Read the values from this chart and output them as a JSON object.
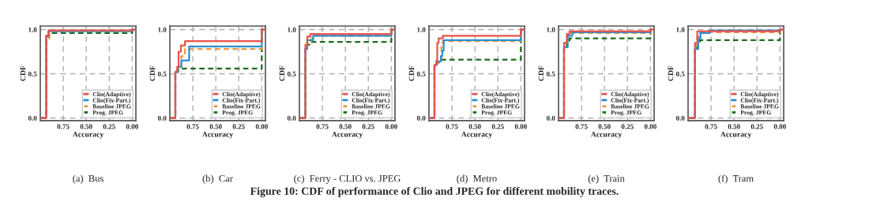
{
  "chart_data": [
    {
      "type": "step",
      "title": "(a)  Bus",
      "xlabel": "Accuracy",
      "ylabel": "CDF",
      "xlim": [
        1.0,
        -0.04
      ],
      "ylim": [
        -0.03,
        1.04
      ],
      "xticks": [
        {
          "value": 0.75,
          "label": "0.75"
        },
        {
          "value": 0.5,
          "label": "0.50"
        },
        {
          "value": 0.25,
          "label": "0.25"
        },
        {
          "value": 0,
          "label": "0.00"
        }
      ],
      "yticks": [
        {
          "value": 0,
          "label": "0.0"
        },
        {
          "value": 0.5,
          "label": "0.5"
        },
        {
          "value": 1,
          "label": "1.0"
        }
      ],
      "grid": true,
      "legend": "bottom right",
      "annotations": [
        "Figure 10: CDF of performance of Clio and JPEG for different mobility traces."
      ],
      "series": [
        {
          "name": "Clio(Adaptive)",
          "color": "#e8534a",
          "line_style": "solid",
          "x": [
            1.0,
            0.935,
            0.91,
            0.0,
            -0.04
          ],
          "values": [
            0,
            0.93,
            0.99,
            1.0,
            1.0
          ]
        },
        {
          "name": "Clio(Fix-Part.)",
          "color": "#2a8fd0",
          "line_style": "solid",
          "x": [
            1.0,
            0.935,
            0.91,
            0.0,
            -0.04
          ],
          "values": [
            0,
            0.92,
            0.98,
            1.0,
            1.0
          ]
        },
        {
          "name": "Baseline JPEG",
          "color": "#f0943d",
          "line_style": "dashed",
          "x": [
            1.0,
            0.935,
            0.9,
            0.0,
            -0.04
          ],
          "values": [
            0,
            0.9,
            0.99,
            1.0,
            1.0
          ]
        },
        {
          "name": "Prog. JPEG",
          "color": "#1e6b1e",
          "line_style": "dashed",
          "x": [
            1.0,
            0.935,
            0.91,
            0.0,
            -0.04
          ],
          "values": [
            0,
            0.93,
            0.96,
            1.0,
            1.0
          ]
        }
      ]
    },
    {
      "type": "step",
      "title": "(b)  Car",
      "xlabel": "Accuracy",
      "ylabel": "CDF",
      "xlim": [
        1.0,
        -0.04
      ],
      "ylim": [
        -0.03,
        1.04
      ],
      "xticks": [
        {
          "value": 0.75,
          "label": "0.75"
        },
        {
          "value": 0.5,
          "label": "0.50"
        },
        {
          "value": 0.25,
          "label": "0.25"
        },
        {
          "value": 0,
          "label": "0.00"
        }
      ],
      "yticks": [
        {
          "value": 0,
          "label": "0.0"
        },
        {
          "value": 0.5,
          "label": "0.5"
        },
        {
          "value": 1,
          "label": "1.0"
        }
      ],
      "grid": true,
      "legend": "bottom right",
      "series": [
        {
          "name": "Clio(Adaptive)",
          "color": "#e8534a",
          "line_style": "solid",
          "x": [
            1.0,
            0.94,
            0.92,
            0.905,
            0.88,
            0.835,
            0.0,
            -0.04
          ],
          "values": [
            0,
            0.52,
            0.58,
            0.75,
            0.82,
            0.87,
            1.0,
            1.0
          ]
        },
        {
          "name": "Clio(Fix-Part.)",
          "color": "#2a8fd0",
          "line_style": "solid",
          "x": [
            1.0,
            0.94,
            0.91,
            0.875,
            0.79,
            0.0,
            -0.04
          ],
          "values": [
            0,
            0.52,
            0.58,
            0.65,
            0.81,
            1.0,
            1.0
          ]
        },
        {
          "name": "Baseline JPEG",
          "color": "#f0943d",
          "line_style": "dashed",
          "x": [
            1.0,
            0.94,
            0.905,
            0.875,
            0.835,
            0.0,
            -0.04
          ],
          "values": [
            0,
            0.53,
            0.58,
            0.7,
            0.78,
            1.0,
            1.0
          ]
        },
        {
          "name": "Prog. JPEG",
          "color": "#1e6b1e",
          "line_style": "dashed",
          "x": [
            1.0,
            0.94,
            0.92,
            0.89,
            0.0,
            -0.04
          ],
          "values": [
            0,
            0.52,
            0.55,
            0.56,
            1.0,
            1.0
          ]
        }
      ]
    },
    {
      "type": "step",
      "title": "(c)  Ferry - CLIO vs. JPEG",
      "xlabel": "Accuracy",
      "ylabel": "CDF",
      "xlim": [
        1.0,
        -0.04
      ],
      "ylim": [
        -0.03,
        1.04
      ],
      "xticks": [
        {
          "value": 0.75,
          "label": "0.75"
        },
        {
          "value": 0.5,
          "label": "0.50"
        },
        {
          "value": 0.25,
          "label": "0.25"
        },
        {
          "value": 0,
          "label": "0.00"
        }
      ],
      "yticks": [
        {
          "value": 0,
          "label": "0.0"
        },
        {
          "value": 0.5,
          "label": "0.5"
        },
        {
          "value": 1,
          "label": "1.0"
        }
      ],
      "grid": true,
      "legend": "bottom right",
      "series": [
        {
          "name": "Clio(Adaptive)",
          "color": "#e8534a",
          "line_style": "solid",
          "x": [
            1.0,
            0.935,
            0.915,
            0.88,
            0.0,
            -0.04
          ],
          "values": [
            0,
            0.82,
            0.92,
            0.95,
            1.0,
            1.0
          ]
        },
        {
          "name": "Clio(Fix-Part.)",
          "color": "#2a8fd0",
          "line_style": "solid",
          "x": [
            1.0,
            0.935,
            0.915,
            0.85,
            0.0,
            -0.04
          ],
          "values": [
            0,
            0.78,
            0.88,
            0.93,
            1.0,
            1.0
          ]
        },
        {
          "name": "Baseline JPEG",
          "color": "#f0943d",
          "line_style": "dashed",
          "x": [
            1.0,
            0.935,
            0.91,
            0.865,
            0.0,
            -0.04
          ],
          "values": [
            0,
            0.83,
            0.87,
            0.93,
            1.0,
            1.0
          ]
        },
        {
          "name": "Prog. JPEG",
          "color": "#1e6b1e",
          "line_style": "dashed",
          "x": [
            1.0,
            0.935,
            0.915,
            0.88,
            0.0,
            -0.04
          ],
          "values": [
            0,
            0.8,
            0.83,
            0.86,
            1.0,
            1.0
          ]
        }
      ]
    },
    {
      "type": "step",
      "title": "(d)  Metro",
      "xlabel": "Accuracy",
      "ylabel": "CDF",
      "xlim": [
        1.0,
        -0.04
      ],
      "ylim": [
        -0.03,
        1.04
      ],
      "xticks": [
        {
          "value": 0.75,
          "label": "0.75"
        },
        {
          "value": 0.5,
          "label": "0.50"
        },
        {
          "value": 0.25,
          "label": "0.25"
        },
        {
          "value": 0,
          "label": "0.00"
        }
      ],
      "yticks": [
        {
          "value": 0,
          "label": "0.0"
        },
        {
          "value": 0.5,
          "label": "0.5"
        },
        {
          "value": 1,
          "label": "1.0"
        }
      ],
      "grid": true,
      "legend": "bottom right",
      "series": [
        {
          "name": "Clio(Adaptive)",
          "color": "#e8534a",
          "line_style": "solid",
          "x": [
            1.0,
            0.94,
            0.92,
            0.91,
            0.895,
            0.85,
            0.0,
            -0.04
          ],
          "values": [
            0,
            0.6,
            0.65,
            0.85,
            0.9,
            0.93,
            1.0,
            1.0
          ]
        },
        {
          "name": "Clio(Fix-Part.)",
          "color": "#2a8fd0",
          "line_style": "solid",
          "x": [
            1.0,
            0.94,
            0.915,
            0.87,
            0.855,
            0.84,
            0.0,
            -0.04
          ],
          "values": [
            0,
            0.6,
            0.64,
            0.7,
            0.76,
            0.88,
            1.0,
            1.0
          ]
        },
        {
          "name": "Baseline JPEG",
          "color": "#f0943d",
          "line_style": "dashed",
          "x": [
            1.0,
            0.94,
            0.895,
            0.865,
            0.85,
            0.0,
            -0.04
          ],
          "values": [
            0,
            0.62,
            0.67,
            0.8,
            0.87,
            1.0,
            1.0
          ]
        },
        {
          "name": "Prog. JPEG",
          "color": "#1e6b1e",
          "line_style": "dashed",
          "x": [
            1.0,
            0.94,
            0.915,
            0.87,
            0.0,
            -0.04
          ],
          "values": [
            0,
            0.6,
            0.63,
            0.66,
            1.0,
            1.0
          ]
        }
      ]
    },
    {
      "type": "step",
      "title": "(e)  Train",
      "xlabel": "Accuracy",
      "ylabel": "CDF",
      "xlim": [
        1.0,
        -0.04
      ],
      "ylim": [
        -0.03,
        1.04
      ],
      "xticks": [
        {
          "value": 0.75,
          "label": "0.75"
        },
        {
          "value": 0.5,
          "label": "0.50"
        },
        {
          "value": 0.25,
          "label": "0.25"
        },
        {
          "value": 0,
          "label": "0.00"
        }
      ],
      "yticks": [
        {
          "value": 0,
          "label": "0.0"
        },
        {
          "value": 0.5,
          "label": "0.5"
        },
        {
          "value": 1,
          "label": "1.0"
        }
      ],
      "grid": true,
      "legend": "bottom right",
      "series": [
        {
          "name": "Clio(Adaptive)",
          "color": "#e8534a",
          "line_style": "solid",
          "x": [
            1.0,
            0.94,
            0.91,
            0.88,
            0.0,
            -0.04
          ],
          "values": [
            0,
            0.85,
            0.95,
            0.98,
            1.0,
            1.0
          ]
        },
        {
          "name": "Clio(Fix-Part.)",
          "color": "#2a8fd0",
          "line_style": "solid",
          "x": [
            1.0,
            0.94,
            0.9,
            0.85,
            0.0,
            -0.04
          ],
          "values": [
            0,
            0.8,
            0.93,
            0.97,
            1.0,
            1.0
          ]
        },
        {
          "name": "Baseline JPEG",
          "color": "#f0943d",
          "line_style": "dashed",
          "x": [
            1.0,
            0.94,
            0.9,
            0.0,
            -0.04
          ],
          "values": [
            0,
            0.85,
            0.96,
            1.0,
            1.0
          ]
        },
        {
          "name": "Prog. JPEG",
          "color": "#1e6b1e",
          "line_style": "dashed",
          "x": [
            1.0,
            0.94,
            0.91,
            0.88,
            0.0,
            -0.04
          ],
          "values": [
            0,
            0.8,
            0.86,
            0.9,
            1.0,
            1.0
          ]
        }
      ]
    },
    {
      "type": "step",
      "title": "(f)  Tram",
      "xlabel": "Accuracy",
      "ylabel": "CDF",
      "xlim": [
        1.0,
        -0.04
      ],
      "ylim": [
        -0.03,
        1.04
      ],
      "xticks": [
        {
          "value": 0.75,
          "label": "0.75"
        },
        {
          "value": 0.5,
          "label": "0.50"
        },
        {
          "value": 0.25,
          "label": "0.25"
        },
        {
          "value": 0,
          "label": "0.00"
        }
      ],
      "yticks": [
        {
          "value": 0,
          "label": "0.0"
        },
        {
          "value": 0.5,
          "label": "0.5"
        },
        {
          "value": 1,
          "label": "1.0"
        }
      ],
      "grid": true,
      "legend": "bottom right",
      "series": [
        {
          "name": "Clio(Adaptive)",
          "color": "#e8534a",
          "line_style": "solid",
          "x": [
            1.0,
            0.925,
            0.9,
            0.0,
            -0.04
          ],
          "values": [
            0,
            0.85,
            0.98,
            1.0,
            1.0
          ]
        },
        {
          "name": "Clio(Fix-Part.)",
          "color": "#2a8fd0",
          "line_style": "solid",
          "x": [
            1.0,
            0.925,
            0.89,
            0.865,
            0.765,
            0.0,
            -0.04
          ],
          "values": [
            0,
            0.78,
            0.9,
            0.96,
            0.99,
            1.0,
            1.0
          ]
        },
        {
          "name": "Baseline JPEG",
          "color": "#f0943d",
          "line_style": "dashed",
          "x": [
            1.0,
            0.925,
            0.9,
            0.87,
            0.0,
            -0.04
          ],
          "values": [
            0,
            0.82,
            0.92,
            0.97,
            1.0,
            1.0
          ]
        },
        {
          "name": "Prog. JPEG",
          "color": "#1e6b1e",
          "line_style": "dashed",
          "x": [
            1.0,
            0.925,
            0.9,
            0.87,
            0.0,
            -0.04
          ],
          "values": [
            0,
            0.8,
            0.83,
            0.88,
            1.0,
            1.0
          ]
        }
      ]
    }
  ]
}
